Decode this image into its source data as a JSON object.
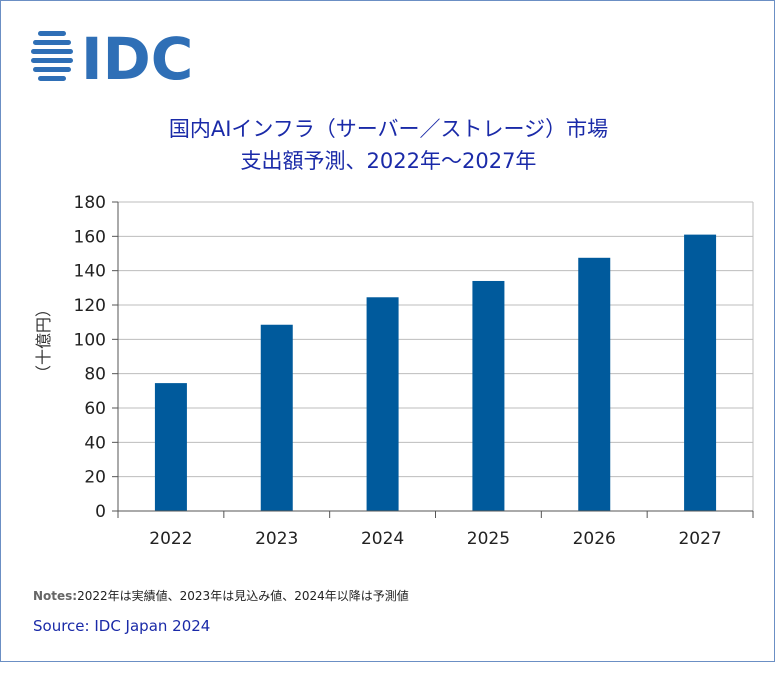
{
  "brand": {
    "logo_text": "IDC",
    "color": "#2f6fb6"
  },
  "title": {
    "line1": "国内AIインフラ（サーバー／ストレージ）市場",
    "line2": "支出額予測、2022年～2027年",
    "color": "#1a2aa8"
  },
  "chart_data": {
    "type": "bar",
    "categories": [
      "2022",
      "2023",
      "2024",
      "2025",
      "2026",
      "2027"
    ],
    "values": [
      74.5,
      108.5,
      124.5,
      134,
      147.5,
      161
    ],
    "ylabel": "（十億円）",
    "ylim": [
      0,
      180
    ],
    "yticks": [
      0,
      20,
      40,
      60,
      80,
      100,
      120,
      140,
      160,
      180
    ],
    "grid": true,
    "bar_color": "#005a9c"
  },
  "notes": {
    "label": "Notes:",
    "text": "2022年は実績値、2023年は見込み値、2024年以降は予測値"
  },
  "source": "Source: IDC Japan 2024"
}
